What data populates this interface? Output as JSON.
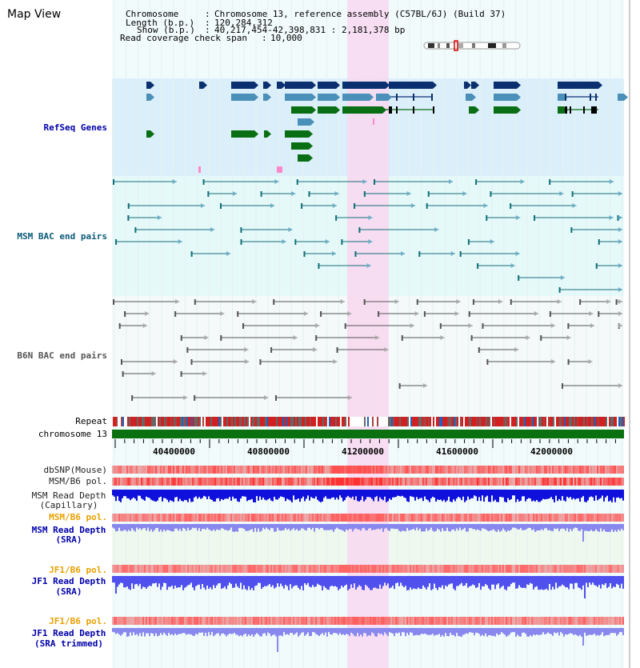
{
  "title": "Map View",
  "header": {
    "chromosome_key": "Chromosome",
    "chromosome_val": "Chromosome 13, reference assembly (C57BL/6J) (Build 37)",
    "length_key": "Length (b.p.)",
    "length_val": "120,284,312",
    "show_key": "Show (b.p.)",
    "show_val": "40,217,454-42,398,831 : 2,181,378 bp",
    "span_key": "Read coverage check span",
    "span_val": "10,000"
  },
  "tracks": {
    "refseq": "RefSeq Genes",
    "msm_bac": "MSM BAC end pairs",
    "b6n_bac": "B6N BAC end pairs",
    "repeat": "Repeat",
    "chrom": "chromosome 13",
    "dbsnp": "dbSNP(Mouse)",
    "msm_b6_pol": "MSM/B6 pol.",
    "msm_depth_cap_1": "MSM Read Depth",
    "msm_depth_cap_2": "(Capillary)",
    "msm_b6_pol_sra": "MSM/B6 pol.",
    "msm_depth_sra_1": "MSM Read Depth",
    "msm_depth_sra_2": "(SRA)",
    "jf1_b6_pol": "JF1/B6 pol.",
    "jf1_depth_1": "JF1 Read Depth",
    "jf1_depth_2": "(SRA)",
    "jf1_b6_pol_t": "JF1/B6 pol.",
    "jf1_depth_t_1": "JF1 Read Depth",
    "jf1_depth_t_2": "(SRA trimmed)"
  },
  "ruler": [
    "40400000",
    "40800000",
    "41200000",
    "41600000",
    "42000000"
  ],
  "colors": {
    "refseq_bg": "#dbeffa",
    "bac_bg": "#e6f9f9",
    "highlight": "#f8d8f0",
    "dark_blue": "#0a3070",
    "mid_blue": "#4a90b8",
    "green": "#0a6e14",
    "msm_color": "#11707a",
    "b6n_color": "#555555",
    "chrom_green": "#0a7010",
    "label_blue": "#0000aa",
    "label_teal": "#0a5a78",
    "label_orange": "#e8a000"
  }
}
